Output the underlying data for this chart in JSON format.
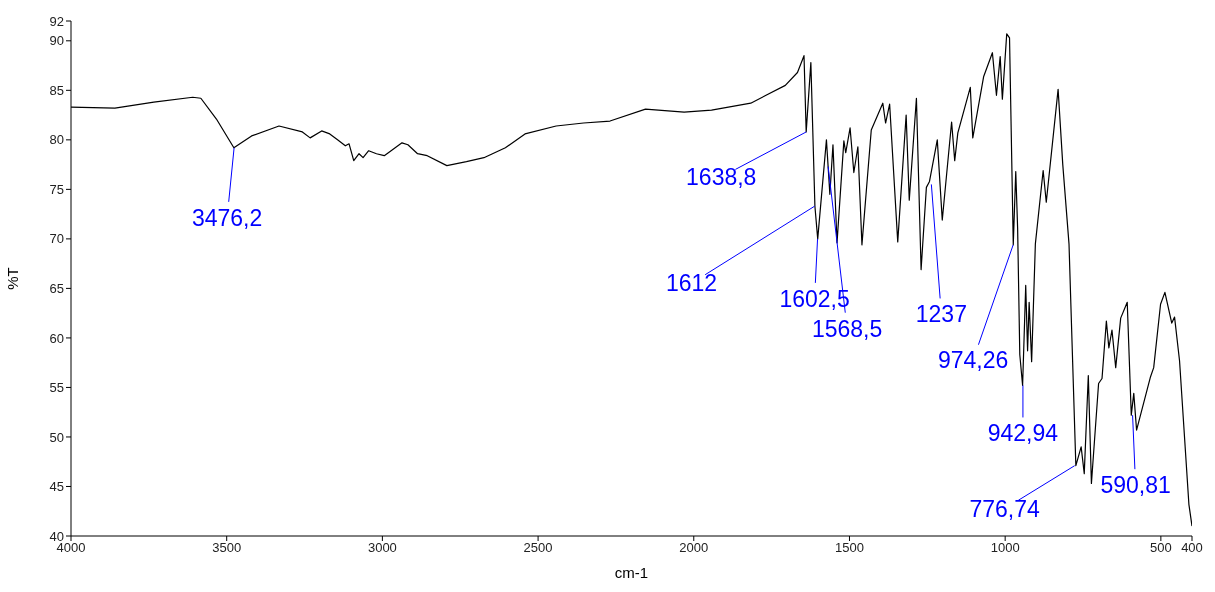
{
  "chart_data": {
    "type": "line",
    "xlabel": "cm-1",
    "ylabel": "%T",
    "xlim": [
      4000,
      400
    ],
    "xticks": [
      4000,
      3500,
      3000,
      2500,
      2000,
      1500,
      1000,
      500,
      400
    ],
    "ylim": [
      40,
      92
    ],
    "yticks": [
      40,
      45,
      50,
      55,
      60,
      65,
      70,
      75,
      80,
      85,
      90,
      92
    ],
    "grid": false,
    "marker": "none",
    "line_style": "solid",
    "series": [
      {
        "color": "#000000",
        "x": [
          4000,
          3859,
          3734,
          3609,
          3583,
          3533,
          3477,
          3420,
          3332,
          3257,
          3232,
          3195,
          3169,
          3144,
          3119,
          3107,
          3092,
          3075,
          3062,
          3044,
          3019,
          2994,
          2937,
          2918,
          2887,
          2856,
          2793,
          2730,
          2674,
          2605,
          2542,
          2442,
          2354,
          2269,
          2155,
          2031,
          1943,
          1817,
          1768,
          1706,
          1667,
          1646,
          1639,
          1624,
          1611,
          1602,
          1574,
          1563,
          1553,
          1540,
          1518,
          1512,
          1498,
          1486,
          1473,
          1460,
          1430,
          1393,
          1384,
          1371,
          1345,
          1318,
          1308,
          1285,
          1270,
          1253,
          1243,
          1218,
          1202,
          1172,
          1162,
          1152,
          1112,
          1104,
          1069,
          1041,
          1028,
          1016,
          1009,
          995,
          986,
          974,
          966,
          960,
          953,
          944,
          934,
          928,
          923,
          915,
          903,
          878,
          868,
          830,
          815,
          795,
          773,
          756,
          746,
          733,
          723,
          700,
          689,
          675,
          667,
          657,
          645,
          629,
          608,
          595,
          587,
          578,
          534,
          523,
          501,
          487,
          465,
          456,
          440,
          410,
          400
        ],
        "values": [
          83.3,
          83.2,
          83.8,
          84.3,
          84.2,
          82.1,
          79.2,
          80.4,
          81.4,
          80.8,
          80.2,
          80.9,
          80.6,
          80.0,
          79.4,
          79.6,
          77.9,
          78.6,
          78.2,
          78.9,
          78.6,
          78.4,
          79.7,
          79.5,
          78.6,
          78.4,
          77.4,
          77.8,
          78.2,
          79.2,
          80.6,
          81.4,
          81.7,
          81.9,
          83.1,
          82.8,
          83.0,
          83.7,
          84.5,
          85.5,
          86.8,
          88.5,
          80.8,
          87.8,
          73.3,
          70.0,
          80.0,
          74.5,
          79.5,
          69.6,
          79.9,
          78.7,
          81.2,
          76.7,
          79.3,
          69.4,
          81.0,
          83.7,
          81.7,
          83.6,
          69.7,
          82.5,
          73.9,
          84.2,
          66.9,
          75.2,
          75.8,
          80.0,
          71.9,
          81.8,
          77.9,
          80.7,
          85.3,
          80.2,
          86.4,
          88.8,
          84.5,
          88.4,
          84.1,
          90.7,
          90.3,
          69.4,
          76.8,
          71.1,
          58.3,
          55.2,
          65.3,
          58.7,
          63.6,
          57.6,
          69.5,
          76.9,
          73.7,
          85.1,
          77.5,
          69.5,
          47.1,
          49.0,
          46.3,
          56.2,
          45.3,
          55.4,
          55.9,
          61.7,
          59.0,
          60.8,
          57.0,
          62.0,
          63.6,
          52.2,
          54.4,
          50.7,
          56.0,
          57.0,
          63.4,
          64.6,
          61.5,
          62.1,
          57.7,
          43.2,
          41.0
        ]
      }
    ],
    "annotations": [
      {
        "text": "3476,2",
        "x": 3476.2,
        "y": 79.2
      },
      {
        "text": "1638,8",
        "x": 1638.8,
        "y": 80.8
      },
      {
        "text": "1612",
        "x": 1612,
        "y": 73.3
      },
      {
        "text": "1602,5",
        "x": 1602.5,
        "y": 70.0
      },
      {
        "text": "1568,5",
        "x": 1568.5,
        "y": 77.3
      },
      {
        "text": "1237",
        "x": 1237,
        "y": 75.5
      },
      {
        "text": "974,26",
        "x": 974.26,
        "y": 69.4
      },
      {
        "text": "942,94",
        "x": 942.94,
        "y": 55.2
      },
      {
        "text": "776,74",
        "x": 776.74,
        "y": 47.1
      },
      {
        "text": "590,81",
        "x": 590.81,
        "y": 52.2
      }
    ]
  }
}
